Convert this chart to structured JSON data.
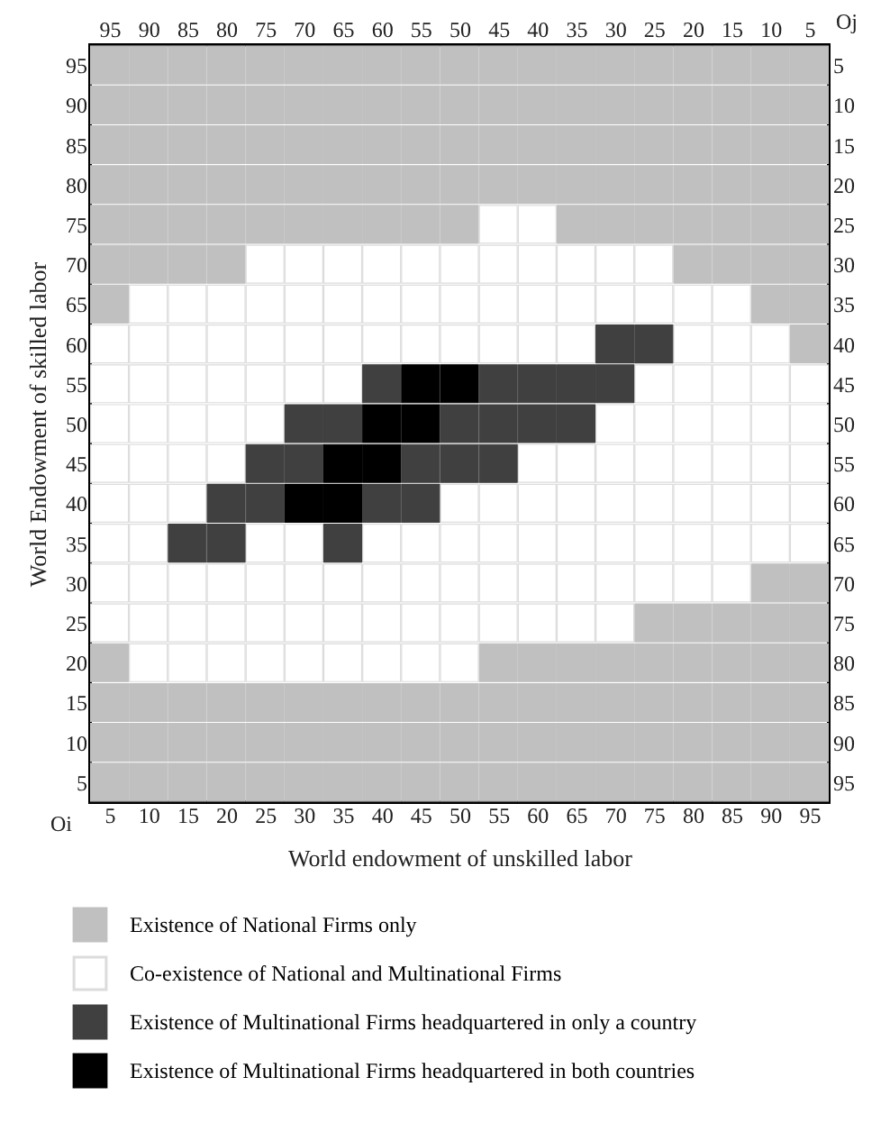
{
  "chart_data": {
    "type": "scatter",
    "xlabel": "World endowment of unskilled labor",
    "ylabel": "World Endowment of skilled labor",
    "xlim": [
      2.5,
      97.5
    ],
    "xticks": [
      5,
      10,
      15,
      20,
      25,
      30,
      35,
      40,
      45,
      50,
      55,
      60,
      65,
      70,
      75,
      80,
      85,
      90,
      95
    ],
    "ylim": [
      2.5,
      97.5
    ],
    "yticks": [
      5,
      10,
      15,
      20,
      25,
      30,
      35,
      40,
      45,
      50,
      55,
      60,
      65,
      70,
      75,
      80,
      85,
      90,
      95
    ],
    "x2lim": [
      97.5,
      2.5
    ],
    "x2ticks": [
      95,
      90,
      85,
      80,
      75,
      70,
      65,
      60,
      55,
      50,
      45,
      40,
      35,
      30,
      25,
      20,
      15,
      10,
      5
    ],
    "y2lim": [
      97.5,
      2.5
    ],
    "y2ticks": [
      5,
      10,
      15,
      20,
      25,
      30,
      35,
      40,
      45,
      50,
      55,
      60,
      65,
      70,
      75,
      80,
      85,
      90,
      95
    ],
    "marker": "square",
    "grid": false,
    "legend": "bottom left",
    "series": [
      {
        "name": "Existence of National Firms only",
        "color": "#c0c0c0",
        "x": [
          5,
          10,
          15,
          20,
          25,
          30,
          35,
          40,
          45,
          50,
          55,
          60,
          65,
          70,
          75,
          80,
          85,
          90,
          95,
          5,
          10,
          15,
          20,
          25,
          30,
          35,
          40,
          45,
          50,
          55,
          60,
          65,
          70,
          75,
          80,
          85,
          90,
          95,
          5,
          10,
          15,
          20,
          25,
          30,
          35,
          40,
          45,
          50,
          55,
          60,
          65,
          70,
          75,
          80,
          85,
          90,
          95,
          5,
          10,
          15,
          20,
          25,
          30,
          35,
          40,
          45,
          50,
          55,
          60,
          65,
          70,
          75,
          80,
          85,
          90,
          95,
          5,
          10,
          15,
          20,
          25,
          30,
          35,
          40,
          45,
          50,
          65,
          70,
          75,
          80,
          85,
          90,
          95,
          5,
          10,
          15,
          20,
          80,
          85,
          90,
          95,
          5,
          90,
          95,
          95,
          90,
          95,
          75,
          80,
          85,
          90,
          95,
          5,
          55,
          60,
          65,
          70,
          75,
          80,
          85,
          90,
          95,
          5,
          10,
          15,
          20,
          25,
          30,
          35,
          40,
          45,
          50,
          55,
          60,
          65,
          70,
          75,
          80,
          85,
          90,
          95,
          5,
          10,
          15,
          20,
          25,
          30,
          35,
          40,
          45,
          50,
          55,
          60,
          65,
          70,
          75,
          80,
          85,
          90,
          95,
          5,
          10,
          15,
          20,
          25,
          30,
          35,
          40,
          45,
          50,
          55,
          60,
          65,
          70,
          75,
          80,
          85,
          90,
          95
        ],
        "values": [
          95,
          95,
          95,
          95,
          95,
          95,
          95,
          95,
          95,
          95,
          95,
          95,
          95,
          95,
          95,
          95,
          95,
          95,
          95,
          90,
          90,
          90,
          90,
          90,
          90,
          90,
          90,
          90,
          90,
          90,
          90,
          90,
          90,
          90,
          90,
          90,
          90,
          90,
          85,
          85,
          85,
          85,
          85,
          85,
          85,
          85,
          85,
          85,
          85,
          85,
          85,
          85,
          85,
          85,
          85,
          85,
          85,
          80,
          80,
          80,
          80,
          80,
          80,
          80,
          80,
          80,
          80,
          80,
          80,
          80,
          80,
          80,
          80,
          80,
          80,
          80,
          75,
          75,
          75,
          75,
          75,
          75,
          75,
          75,
          75,
          75,
          75,
          75,
          75,
          75,
          75,
          75,
          75,
          70,
          70,
          70,
          70,
          70,
          70,
          70,
          70,
          65,
          65,
          65,
          60,
          30,
          30,
          25,
          25,
          25,
          25,
          25,
          20,
          20,
          20,
          20,
          20,
          20,
          20,
          20,
          20,
          20,
          15,
          15,
          15,
          15,
          15,
          15,
          15,
          15,
          15,
          15,
          15,
          15,
          15,
          15,
          15,
          15,
          15,
          15,
          15,
          10,
          10,
          10,
          10,
          10,
          10,
          10,
          10,
          10,
          10,
          10,
          10,
          10,
          10,
          10,
          10,
          10,
          10,
          10,
          5,
          5,
          5,
          5,
          5,
          5,
          5,
          5,
          5,
          5,
          5,
          5,
          5,
          5,
          5,
          5,
          5,
          5,
          5
        ]
      },
      {
        "name": "Co-existence of National and Multinational Firms",
        "color": "#ffffff",
        "x": [
          55,
          60,
          25,
          30,
          35,
          40,
          45,
          50,
          55,
          60,
          65,
          70,
          75,
          10,
          15,
          20,
          25,
          30,
          35,
          40,
          45,
          50,
          55,
          60,
          65,
          70,
          75,
          80,
          85,
          5,
          10,
          15,
          20,
          25,
          30,
          35,
          40,
          45,
          50,
          55,
          60,
          65,
          80,
          85,
          90,
          5,
          10,
          15,
          20,
          25,
          30,
          35,
          75,
          80,
          85,
          90,
          95,
          5,
          10,
          15,
          20,
          25,
          70,
          75,
          80,
          85,
          90,
          95,
          5,
          10,
          15,
          20,
          60,
          65,
          70,
          75,
          80,
          85,
          90,
          95,
          5,
          10,
          15,
          50,
          55,
          60,
          65,
          70,
          75,
          80,
          85,
          90,
          95,
          5,
          10,
          25,
          30,
          40,
          45,
          50,
          55,
          60,
          65,
          70,
          75,
          80,
          85,
          90,
          95,
          5,
          10,
          15,
          20,
          25,
          30,
          35,
          40,
          45,
          50,
          55,
          60,
          65,
          70,
          75,
          80,
          85,
          5,
          10,
          15,
          20,
          25,
          30,
          35,
          40,
          45,
          50,
          55,
          60,
          65,
          70,
          10,
          15,
          20,
          25,
          30,
          35,
          40,
          45,
          50
        ],
        "values": [
          75,
          75,
          70,
          70,
          70,
          70,
          70,
          70,
          70,
          70,
          70,
          70,
          70,
          65,
          65,
          65,
          65,
          65,
          65,
          65,
          65,
          65,
          65,
          65,
          65,
          65,
          65,
          65,
          65,
          60,
          60,
          60,
          60,
          60,
          60,
          60,
          60,
          60,
          60,
          60,
          60,
          60,
          60,
          60,
          60,
          55,
          55,
          55,
          55,
          55,
          55,
          55,
          55,
          55,
          55,
          55,
          55,
          50,
          50,
          50,
          50,
          50,
          50,
          50,
          50,
          50,
          50,
          50,
          45,
          45,
          45,
          45,
          45,
          45,
          45,
          45,
          45,
          45,
          45,
          45,
          40,
          40,
          40,
          40,
          40,
          40,
          40,
          40,
          40,
          40,
          40,
          40,
          40,
          35,
          35,
          35,
          35,
          35,
          35,
          35,
          35,
          35,
          35,
          35,
          35,
          35,
          35,
          35,
          35,
          30,
          30,
          30,
          30,
          30,
          30,
          30,
          30,
          30,
          30,
          30,
          30,
          30,
          30,
          30,
          30,
          30,
          25,
          25,
          25,
          25,
          25,
          25,
          25,
          25,
          25,
          25,
          25,
          25,
          25,
          25,
          20,
          20,
          20,
          20,
          20,
          20,
          20,
          20,
          20
        ]
      },
      {
        "name": "Existence of Multinational Firms headquartered in only a country",
        "color": "#404040",
        "x": [
          70,
          75,
          40,
          55,
          60,
          65,
          70,
          30,
          35,
          50,
          55,
          60,
          65,
          25,
          30,
          45,
          50,
          55,
          20,
          25,
          40,
          45,
          15,
          20,
          35
        ],
        "values": [
          60,
          60,
          55,
          55,
          55,
          55,
          55,
          50,
          50,
          50,
          50,
          50,
          50,
          45,
          45,
          45,
          45,
          45,
          40,
          40,
          40,
          40,
          35,
          35,
          35
        ]
      },
      {
        "name": "Existence of Multinational Firms headquartered in both countries",
        "color": "#000000",
        "x": [
          45,
          50,
          40,
          45,
          35,
          40,
          30,
          35
        ],
        "values": [
          55,
          55,
          50,
          50,
          45,
          45,
          40,
          40
        ]
      }
    ],
    "annotations": [
      "Oi",
      "Oj"
    ]
  }
}
